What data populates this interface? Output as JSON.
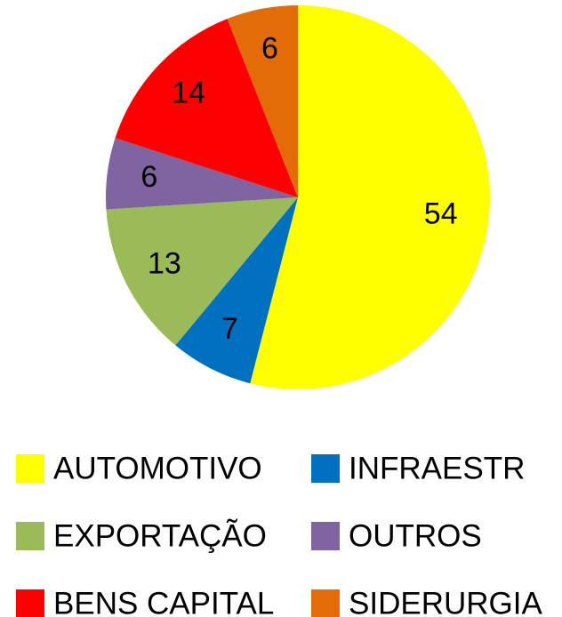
{
  "chart_data": {
    "type": "pie",
    "categories": [
      "AUTOMOTIVO",
      "INFRAESTR",
      "EXPORTAÇÃO",
      "OUTROS",
      "BENS CAPITAL",
      "SIDERURGIA"
    ],
    "values": [
      54,
      7,
      13,
      6,
      14,
      6
    ],
    "colors": [
      "#ffff00",
      "#0070c0",
      "#9bbb59",
      "#8064a2",
      "#ff0000",
      "#e36c09"
    ]
  }
}
